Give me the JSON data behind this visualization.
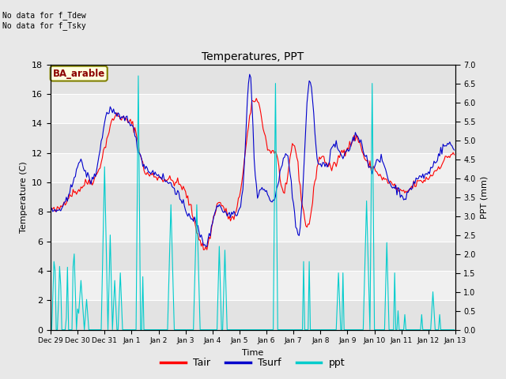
{
  "title": "Temperatures, PPT",
  "xlabel": "Time",
  "ylabel_left": "Temperature (C)",
  "ylabel_right": "PPT (mm)",
  "annotation_text": "No data for f_Tdew\nNo data for f_Tsky",
  "box_label": "BA_arable",
  "ylim_left": [
    0,
    18
  ],
  "ylim_right": [
    0,
    7
  ],
  "yticks_left": [
    0,
    2,
    4,
    6,
    8,
    10,
    12,
    14,
    16,
    18
  ],
  "yticks_right": [
    0.0,
    0.5,
    1.0,
    1.5,
    2.0,
    2.5,
    3.0,
    3.5,
    4.0,
    4.5,
    5.0,
    5.5,
    6.0,
    6.5,
    7.0
  ],
  "color_tair": "#ff0000",
  "color_tsurf": "#0000cc",
  "color_ppt": "#00cccc",
  "color_figure_bg": "#e8e8e8",
  "color_plot_bg": "#f0f0f0",
  "color_band_light": "#f8f8f8",
  "color_band_dark": "#e0e0e0",
  "legend_labels": [
    "Tair",
    "Tsurf",
    "ppt"
  ],
  "xtick_labels": [
    "Dec 29",
    "Dec 30",
    "Dec 31",
    "Jan 1",
    "Jan 2",
    "Jan 3",
    "Jan 4",
    "Jan 5",
    "Jan 6",
    "Jan 7",
    "Jan 8",
    "Jan 9",
    "Jan 10",
    "Jan 11",
    "Jan 12",
    "Jan 13"
  ]
}
